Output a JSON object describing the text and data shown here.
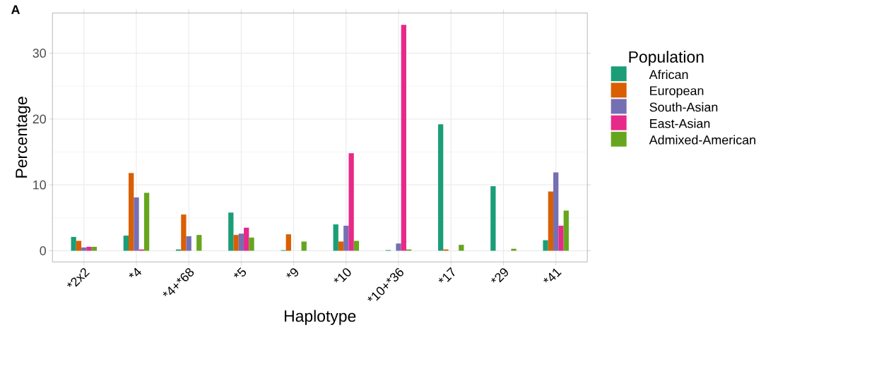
{
  "chart_data": {
    "type": "bar",
    "title": "A",
    "xlabel": "Haplotype",
    "ylabel": "Percentage",
    "legend_title": "Population",
    "categories": [
      "*2x2",
      "*4",
      "*4+*68",
      "*5",
      "*9",
      "*10",
      "*10+*36",
      "*17",
      "*29",
      "*41"
    ],
    "series": [
      {
        "name": "African",
        "color": "#1b9e77",
        "values": [
          2.1,
          2.3,
          0.2,
          5.8,
          0.1,
          4.0,
          0.1,
          19.2,
          9.8,
          1.6
        ]
      },
      {
        "name": "European",
        "color": "#d95f02",
        "values": [
          1.5,
          11.8,
          5.5,
          2.4,
          2.5,
          1.4,
          0,
          0.2,
          0,
          9.0
        ]
      },
      {
        "name": "South-Asian",
        "color": "#7570b3",
        "values": [
          0.5,
          8.1,
          2.2,
          2.6,
          0,
          3.8,
          1.1,
          0,
          0,
          11.9
        ]
      },
      {
        "name": "East-Asian",
        "color": "#e7298a",
        "values": [
          0.6,
          0.2,
          0,
          3.5,
          0,
          14.8,
          34.3,
          0,
          0,
          3.8
        ]
      },
      {
        "name": "Admixed-American",
        "color": "#66a61e",
        "values": [
          0.6,
          8.8,
          2.4,
          2.0,
          1.4,
          1.5,
          0.2,
          0.9,
          0.3,
          6.1
        ]
      }
    ],
    "ylim": [
      -1.7,
      36.1
    ],
    "yticks": [
      0,
      10,
      20,
      30
    ],
    "grid": true,
    "legend": "right"
  }
}
